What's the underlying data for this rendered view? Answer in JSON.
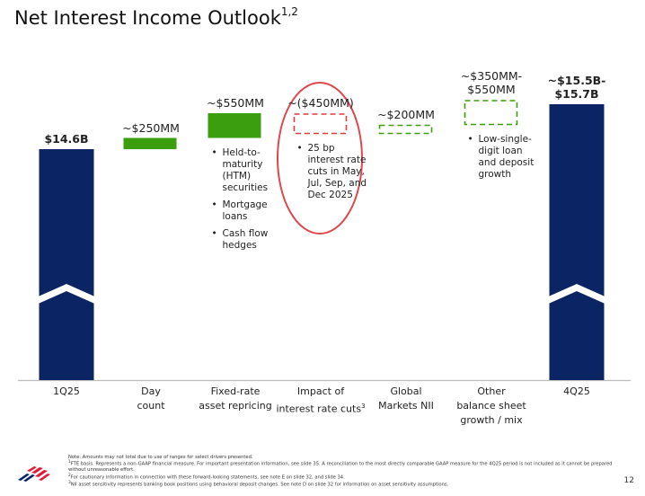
{
  "slide": {
    "title": "Net Interest Income Outlook",
    "title_superscript": "1,2",
    "page_number": "12",
    "notes": [
      "Note: Amounts may not total due to use of ranges for select drivers presented.",
      "FTE basis. Represents a non-GAAP financial measure. For important presentation information, see slide 35. A reconciliation to the most directly comparable GAAP measure for the 4Q25 period is not included as it cannot be prepared without unreasonable effort.",
      "For cautionary information in connection with these forward-looking statements, see note E on slide 32, and slide 34.",
      "NII asset sensitivity represents banking book positions using behavioral deposit changes. See note D on slide 32 for information on asset sensitivity assumptions."
    ],
    "note_markers": [
      "",
      "1",
      "2",
      "3"
    ]
  },
  "colors": {
    "navy": "#0b2463",
    "green": "#3a9e0f",
    "red": "#e03a3a",
    "ellipse": "#e0474c",
    "axis": "#bdbdbd"
  },
  "chart_data": {
    "type": "waterfall",
    "title": "",
    "axis_break": true,
    "units": "$MM",
    "categories": [
      "1Q25",
      "Day count",
      "Fixed-rate asset repricing",
      "Impact of interest rate cuts",
      "Global Markets NII",
      "Other balance sheet growth / mix",
      "4Q25"
    ],
    "category_superscripts": [
      "",
      "",
      "",
      "3",
      "",
      "",
      ""
    ],
    "category_lines": [
      [
        "1Q25"
      ],
      [
        "Day",
        "count"
      ],
      [
        "Fixed-rate",
        "asset repricing"
      ],
      [
        "Impact of",
        "interest rate cuts"
      ],
      [
        "Global",
        "Markets NII"
      ],
      [
        "Other",
        "balance sheet",
        "growth / mix"
      ],
      [
        "4Q25"
      ]
    ],
    "bars": [
      {
        "kind": "total",
        "value": 14600,
        "label": "$14.6B",
        "style": "solid",
        "color": "navy"
      },
      {
        "kind": "delta",
        "value": 250,
        "label": "~$250MM",
        "style": "solid",
        "color": "green"
      },
      {
        "kind": "delta",
        "value": 550,
        "label": "~$550MM",
        "style": "solid",
        "color": "green",
        "bullets": [
          "Held-to-maturity (HTM) securities",
          "Mortgage loans",
          "Cash flow hedges"
        ]
      },
      {
        "kind": "delta",
        "value": -450,
        "label": "~($450MM)",
        "style": "dashed",
        "color": "red",
        "highlighted": true,
        "bullets": [
          "25 bp interest rate cuts in May, Jul, Sep, and Dec 2025"
        ]
      },
      {
        "kind": "delta",
        "value": 200,
        "label": "~$200MM",
        "style": "dashed",
        "color": "green"
      },
      {
        "kind": "delta",
        "value_range": [
          350,
          550
        ],
        "label": "~$350MM-$550MM",
        "label_lines": [
          "~$350MM-",
          "$550MM"
        ],
        "style": "dashed",
        "color": "green",
        "bullets": [
          "Low-single-digit loan and deposit growth"
        ]
      },
      {
        "kind": "total",
        "value_range": [
          15500,
          15700
        ],
        "label": "~$15.5B-$15.7B",
        "label_lines": [
          "~$15.5B-",
          "$15.7B"
        ],
        "style": "solid",
        "color": "navy"
      }
    ]
  }
}
